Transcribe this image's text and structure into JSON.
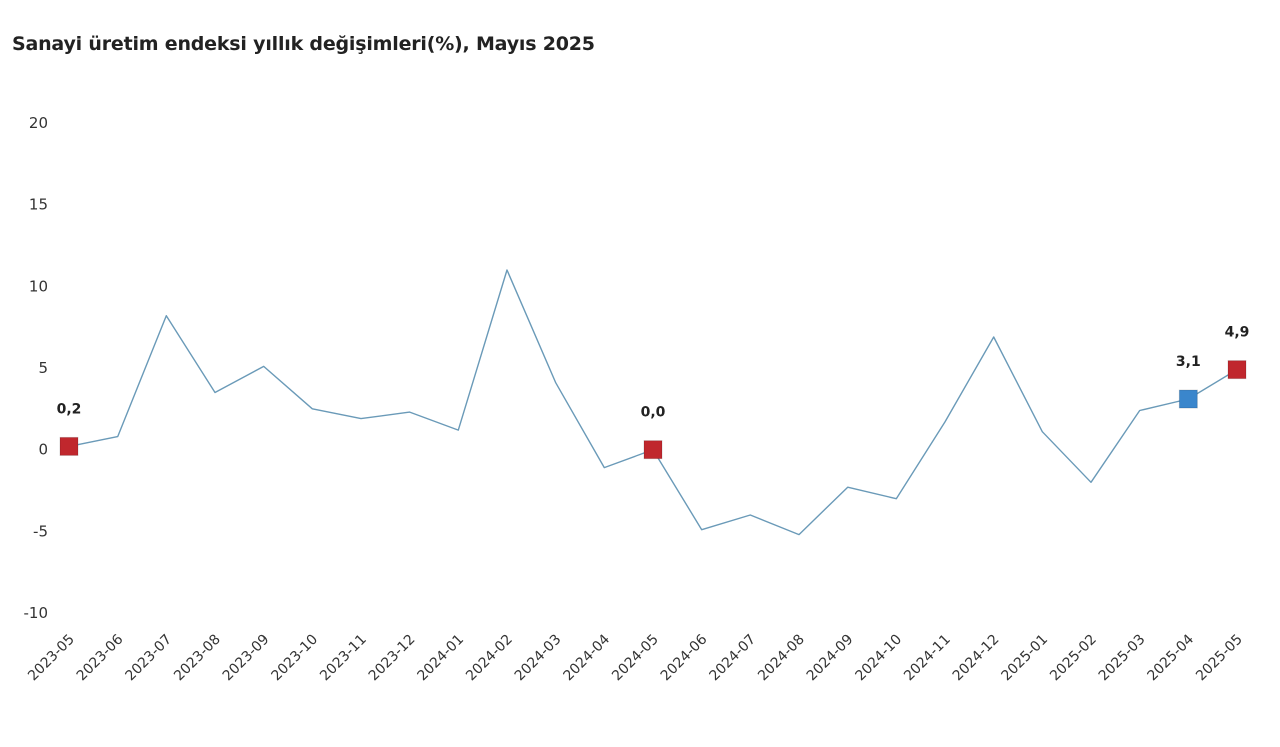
{
  "title": "Sanayi üretim endeksi yıllık değişimleri(%), Mayıs 2025",
  "chart_data": {
    "type": "line",
    "title": "Sanayi üretim endeksi yıllık değişimleri(%), Mayıs 2025",
    "xlabel": "",
    "ylabel": "",
    "ylim": [
      -10,
      20
    ],
    "yticks": [
      20,
      15,
      10,
      5,
      0,
      -5,
      -10
    ],
    "grid": false,
    "categories": [
      "2023-05",
      "2023-06",
      "2023-07",
      "2023-08",
      "2023-09",
      "2023-10",
      "2023-11",
      "2023-12",
      "2024-01",
      "2024-02",
      "2024-03",
      "2024-04",
      "2024-05",
      "2024-06",
      "2024-07",
      "2024-08",
      "2024-09",
      "2024-10",
      "2024-11",
      "2024-12",
      "2025-01",
      "2025-02",
      "2025-03",
      "2025-04",
      "2025-05"
    ],
    "series": [
      {
        "values": [
          0.2,
          0.8,
          8.2,
          3.5,
          5.1,
          2.5,
          1.9,
          2.3,
          1.2,
          11.0,
          4.1,
          -1.1,
          0.0,
          -4.9,
          -4.0,
          -5.2,
          -2.3,
          -3.0,
          1.7,
          6.9,
          1.1,
          -2.0,
          2.4,
          3.1,
          4.9
        ],
        "color": "#6a9ab8"
      }
    ],
    "highlights": [
      {
        "category": "2023-05",
        "value": 0.2,
        "label": "0,2",
        "color": "#c0272d"
      },
      {
        "category": "2024-05",
        "value": 0.0,
        "label": "0,0",
        "color": "#c0272d"
      },
      {
        "category": "2025-04",
        "value": 3.1,
        "label": "3,1",
        "color": "#3a86cc"
      },
      {
        "category": "2025-05",
        "value": 4.9,
        "label": "4,9",
        "color": "#c0272d"
      }
    ]
  }
}
